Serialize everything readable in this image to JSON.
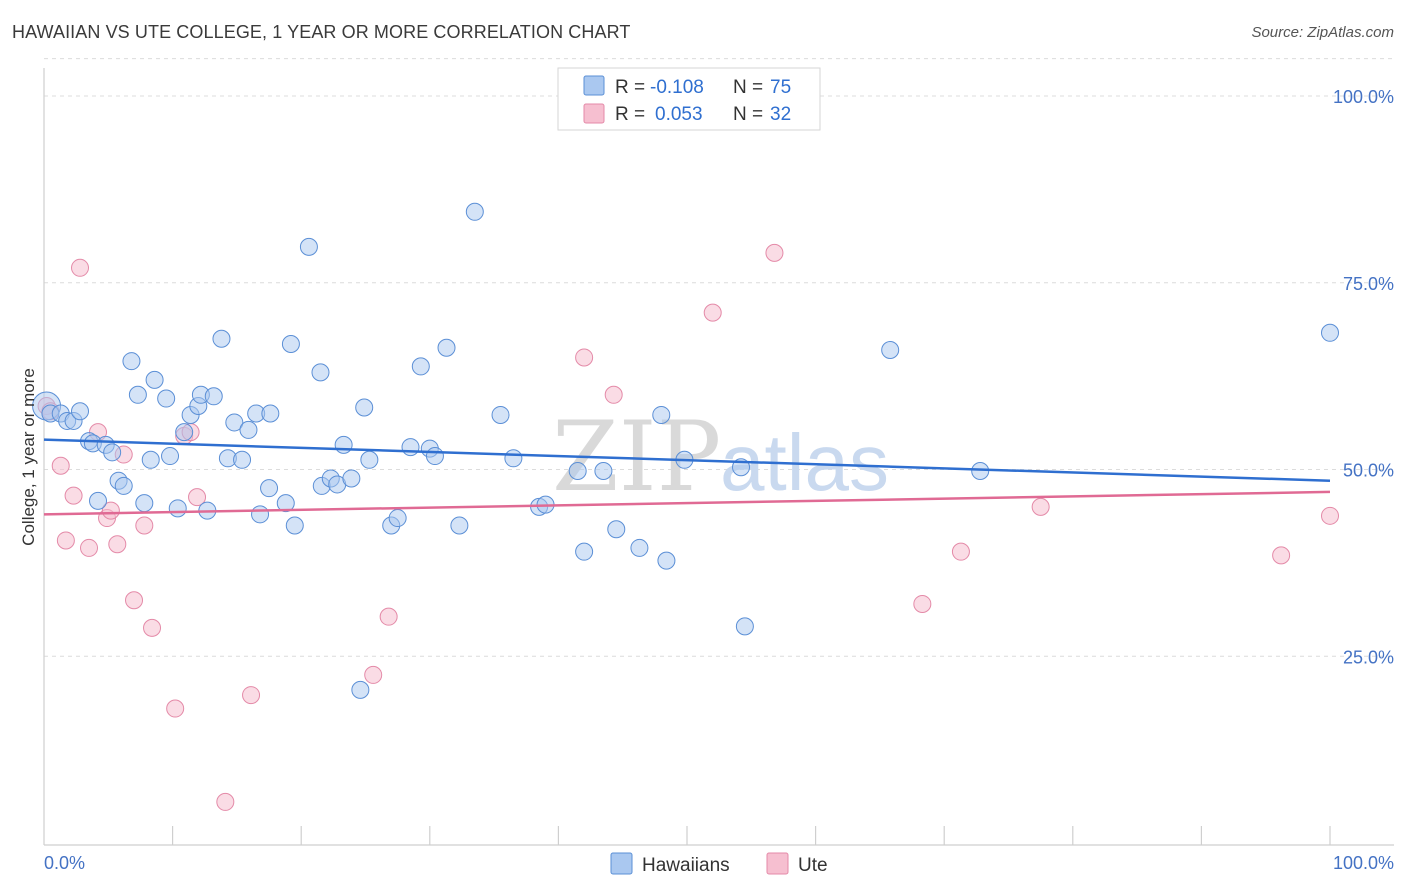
{
  "header": {
    "title": "HAWAIIAN VS UTE COLLEGE, 1 YEAR OR MORE CORRELATION CHART",
    "source": "Source: ZipAtlas.com"
  },
  "watermark": {
    "zip": "ZIP",
    "atlas": "atlas"
  },
  "legend": {
    "r_label": "R =",
    "n_label": "N =",
    "rows": [
      {
        "r": "-0.108",
        "n": "75"
      },
      {
        "r": "0.053",
        "n": "32"
      }
    ]
  },
  "colors": {
    "hawaiians_fill": "#aac8f0",
    "hawaiians_stroke": "#5b8fd6",
    "hawaiians_line": "#2f6fd0",
    "ute_fill": "#f6bfd0",
    "ute_stroke": "#e48aa8",
    "ute_line": "#e06a94"
  },
  "chart_data": {
    "type": "scatter",
    "title": "HAWAIIAN VS UTE COLLEGE, 1 YEAR OR MORE CORRELATION CHART",
    "xlabel": "",
    "ylabel": "College, 1 year or more",
    "xlim": [
      0,
      100
    ],
    "ylim": [
      0,
      105
    ],
    "x_tick_labels": [
      "0.0%",
      "100.0%"
    ],
    "y_ticks": [
      25,
      50,
      75,
      100
    ],
    "y_tick_labels": [
      "25.0%",
      "50.0%",
      "75.0%",
      "100.0%"
    ],
    "grid": true,
    "legend_position": "top-center",
    "series": [
      {
        "name": "Hawaiians",
        "R": -0.108,
        "N": 75,
        "trend": {
          "x": [
            0,
            100
          ],
          "y": [
            54.0,
            48.5
          ]
        },
        "points": [
          [
            0.2,
            58.5
          ],
          [
            0.5,
            57.5
          ],
          [
            1.3,
            57.5
          ],
          [
            1.8,
            56.5
          ],
          [
            2.3,
            56.5
          ],
          [
            2.8,
            57.8
          ],
          [
            3.5,
            53.8
          ],
          [
            3.8,
            53.5
          ],
          [
            4.2,
            45.8
          ],
          [
            4.8,
            53.3
          ],
          [
            5.3,
            52.3
          ],
          [
            5.8,
            48.5
          ],
          [
            6.2,
            47.8
          ],
          [
            6.8,
            64.5
          ],
          [
            7.3,
            60.0
          ],
          [
            7.8,
            45.5
          ],
          [
            8.3,
            51.3
          ],
          [
            8.6,
            62.0
          ],
          [
            9.5,
            59.5
          ],
          [
            9.8,
            51.8
          ],
          [
            10.4,
            44.8
          ],
          [
            10.9,
            55.0
          ],
          [
            11.4,
            57.3
          ],
          [
            12.0,
            58.5
          ],
          [
            12.2,
            60.0
          ],
          [
            12.7,
            44.5
          ],
          [
            13.2,
            59.8
          ],
          [
            13.8,
            67.5
          ],
          [
            14.3,
            51.5
          ],
          [
            14.8,
            56.3
          ],
          [
            15.4,
            51.3
          ],
          [
            15.9,
            55.3
          ],
          [
            16.5,
            57.5
          ],
          [
            16.8,
            44.0
          ],
          [
            17.5,
            47.5
          ],
          [
            17.6,
            57.5
          ],
          [
            18.8,
            45.5
          ],
          [
            19.2,
            66.8
          ],
          [
            19.5,
            42.5
          ],
          [
            20.6,
            79.8
          ],
          [
            21.5,
            63.0
          ],
          [
            21.6,
            47.8
          ],
          [
            22.3,
            48.8
          ],
          [
            22.8,
            48.0
          ],
          [
            23.3,
            53.3
          ],
          [
            23.9,
            48.8
          ],
          [
            24.9,
            58.3
          ],
          [
            25.3,
            51.3
          ],
          [
            27.0,
            42.5
          ],
          [
            27.5,
            43.5
          ],
          [
            28.5,
            53.0
          ],
          [
            29.3,
            63.8
          ],
          [
            30.0,
            52.8
          ],
          [
            30.4,
            51.8
          ],
          [
            31.3,
            66.3
          ],
          [
            32.3,
            42.5
          ],
          [
            33.5,
            84.5
          ],
          [
            35.5,
            57.3
          ],
          [
            36.5,
            51.5
          ],
          [
            38.5,
            45.0
          ],
          [
            39.0,
            45.3
          ],
          [
            41.5,
            49.8
          ],
          [
            42.0,
            39.0
          ],
          [
            43.5,
            49.8
          ],
          [
            44.5,
            42.0
          ],
          [
            46.3,
            39.5
          ],
          [
            48.0,
            57.3
          ],
          [
            48.4,
            37.8
          ],
          [
            49.8,
            51.3
          ],
          [
            54.2,
            50.3
          ],
          [
            54.5,
            29.0
          ],
          [
            65.8,
            66.0
          ],
          [
            72.8,
            49.8
          ],
          [
            100.0,
            68.3
          ],
          [
            24.6,
            20.5
          ]
        ]
      },
      {
        "name": "Ute",
        "R": 0.053,
        "N": 32,
        "trend": {
          "x": [
            0,
            100
          ],
          "y": [
            44.0,
            47.0
          ]
        },
        "points": [
          [
            0.2,
            58.5
          ],
          [
            0.5,
            57.8
          ],
          [
            1.3,
            50.5
          ],
          [
            1.7,
            40.5
          ],
          [
            2.3,
            46.5
          ],
          [
            2.8,
            77.0
          ],
          [
            3.5,
            39.5
          ],
          [
            4.2,
            55.0
          ],
          [
            4.9,
            43.5
          ],
          [
            5.2,
            44.5
          ],
          [
            5.7,
            40.0
          ],
          [
            6.2,
            52.0
          ],
          [
            7.0,
            32.5
          ],
          [
            7.8,
            42.5
          ],
          [
            8.4,
            28.8
          ],
          [
            10.2,
            18.0
          ],
          [
            10.9,
            54.5
          ],
          [
            11.4,
            55.0
          ],
          [
            11.9,
            46.3
          ],
          [
            14.1,
            5.5
          ],
          [
            16.1,
            19.8
          ],
          [
            25.6,
            22.5
          ],
          [
            26.8,
            30.3
          ],
          [
            42.0,
            65.0
          ],
          [
            44.3,
            60.0
          ],
          [
            52.0,
            71.0
          ],
          [
            56.8,
            79.0
          ],
          [
            68.3,
            32.0
          ],
          [
            71.3,
            39.0
          ],
          [
            77.5,
            45.0
          ],
          [
            96.2,
            38.5
          ],
          [
            100.0,
            43.8
          ]
        ]
      }
    ]
  },
  "bottom_legend": {
    "hawaiians": "Hawaiians",
    "ute": "Ute"
  }
}
